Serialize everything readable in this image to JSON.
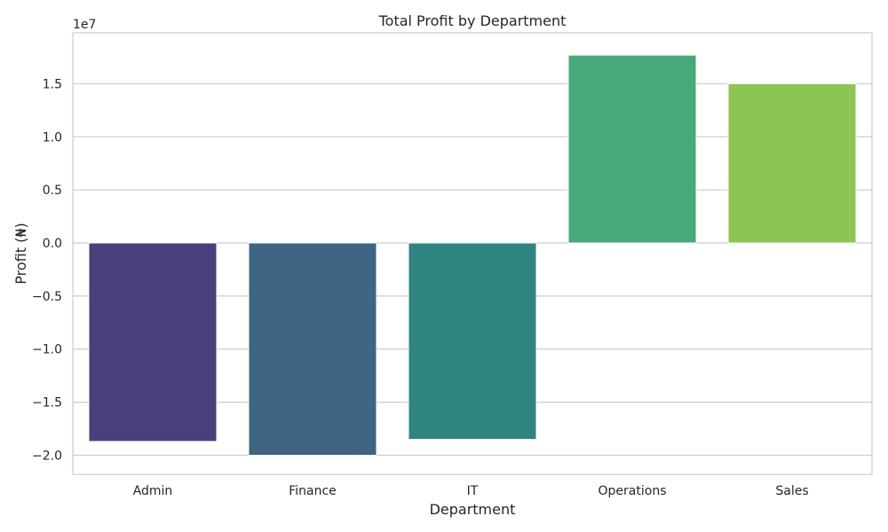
{
  "chart_data": {
    "type": "bar",
    "title": "Total Profit by Department",
    "xlabel": "Department",
    "ylabel": "Profit (₦)",
    "y_offset_label": "1e7",
    "y_scale": 10000000,
    "categories": [
      "Admin",
      "Finance",
      "IT",
      "Operations",
      "Sales"
    ],
    "values": [
      -18700000,
      -20000000,
      -18500000,
      17700000,
      15000000
    ],
    "colors": [
      "#4a3f7a",
      "#3e6682",
      "#2e8580",
      "#45a978",
      "#8bc553"
    ],
    "ylim": [
      -21800000,
      19800000
    ],
    "yticks": [
      -2.0,
      -1.5,
      -1.0,
      -0.5,
      0.0,
      0.5,
      1.0,
      1.5
    ],
    "ytick_labels": [
      "−2.0",
      "−1.5",
      "−1.0",
      "−0.5",
      "0.0",
      "0.5",
      "1.0",
      "1.5"
    ],
    "grid": true,
    "grid_color": "#cccccc",
    "legend": "none"
  }
}
